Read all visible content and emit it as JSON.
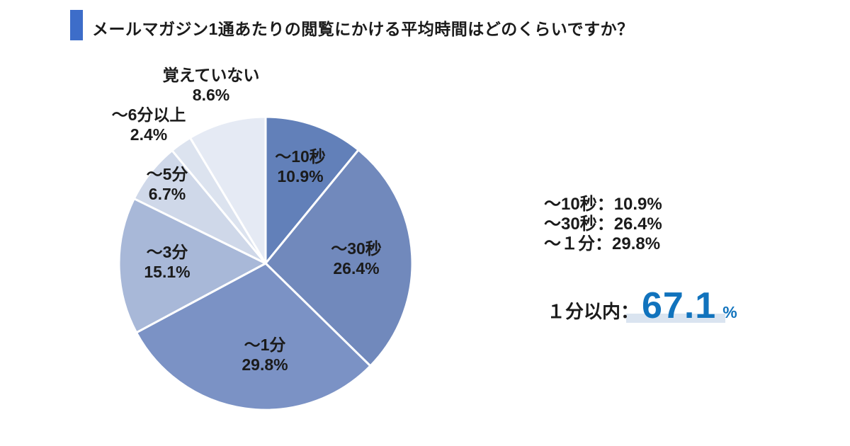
{
  "title": {
    "text": "メールマガジン1通あたりの閲覧にかける平均時間はどのくらいですか？"
  },
  "accent_color": "#3d6dc9",
  "chart_data": {
    "type": "pie",
    "title": "メールマガジン1通あたりの閲覧にかける平均時間はどのくらいですか？",
    "start_angle_deg": -90,
    "direction": "clockwise",
    "unit": "%",
    "separator_color": "#ffffff",
    "slices": [
      {
        "label": "～10秒",
        "value": 10.9,
        "pct_text": "10.9%",
        "color": "#6280b9"
      },
      {
        "label": "～30秒",
        "value": 26.4,
        "pct_text": "26.4%",
        "color": "#7189bc"
      },
      {
        "label": "～1分",
        "value": 29.8,
        "pct_text": "29.8%",
        "color": "#7b92c5"
      },
      {
        "label": "～3分",
        "value": 15.1,
        "pct_text": "15.1%",
        "color": "#a8b8d8"
      },
      {
        "label": "～5分",
        "value": 6.7,
        "pct_text": "6.7%",
        "color": "#cfd8e9"
      },
      {
        "label": "～6分以上",
        "value": 2.4,
        "pct_text": "2.4%",
        "color": "#dce3ef"
      },
      {
        "label": "覚えていない",
        "value": 8.6,
        "pct_text": "8.6%",
        "color": "#e5eaf4"
      }
    ]
  },
  "legend": {
    "lines": [
      "～10秒：10.9%",
      "～30秒：26.4%",
      "～１分：29.8%"
    ]
  },
  "summary": {
    "label": "１分以内：",
    "value": "67.1",
    "unit": "%",
    "value_color": "#1173bd",
    "highlight_color": "#dae4f0"
  }
}
